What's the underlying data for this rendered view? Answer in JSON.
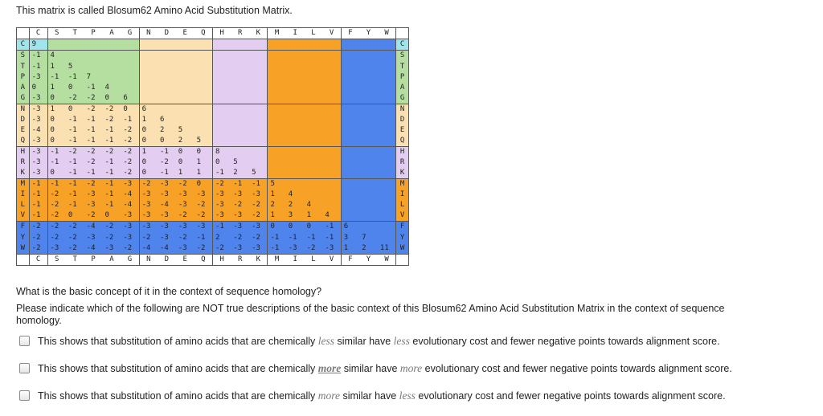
{
  "intro": "This matrix is called Blosum62 Amino Acid Substitution Matrix.",
  "matrix": {
    "columns": [
      "C",
      "S",
      "T",
      "P",
      "A",
      "G",
      "N",
      "D",
      "E",
      "Q",
      "H",
      "R",
      "K",
      "M",
      "I",
      "L",
      "V",
      "F",
      "Y",
      "W"
    ],
    "groups": [
      {
        "name": "C",
        "rows": [
          0
        ],
        "cols": [
          0
        ],
        "color": "#9fe6ec"
      },
      {
        "name": "STPAG",
        "rows": [
          1,
          2,
          3,
          4,
          5
        ],
        "cols": [
          1,
          2,
          3,
          4,
          5
        ],
        "color": "#b4dfa0"
      },
      {
        "name": "NDEQ",
        "rows": [
          6,
          7,
          8,
          9
        ],
        "cols": [
          6,
          7,
          8,
          9
        ],
        "color": "#fbe1b2"
      },
      {
        "name": "HRK",
        "rows": [
          10,
          11,
          12
        ],
        "cols": [
          10,
          11,
          12
        ],
        "color": "#e3cdf0"
      },
      {
        "name": "MILV",
        "rows": [
          13,
          14,
          15,
          16
        ],
        "cols": [
          13,
          14,
          15,
          16
        ],
        "color": "#f7a226"
      },
      {
        "name": "FYW",
        "rows": [
          17,
          18,
          19
        ],
        "cols": [
          17,
          18,
          19
        ],
        "color": "#4f84ec"
      }
    ],
    "rows": [
      {
        "label": "C",
        "values": [
          "9"
        ]
      },
      {
        "label": "S",
        "values": [
          "-1",
          "4"
        ]
      },
      {
        "label": "T",
        "values": [
          "-1",
          "1",
          "5"
        ]
      },
      {
        "label": "P",
        "values": [
          "-3",
          "-1",
          "-1",
          "7"
        ]
      },
      {
        "label": "A",
        "values": [
          "0",
          "1",
          "0",
          "-1",
          "4"
        ]
      },
      {
        "label": "G",
        "values": [
          "-3",
          "0",
          "-2",
          "-2",
          "0",
          "6"
        ]
      },
      {
        "label": "N",
        "values": [
          "-3",
          "1",
          "0",
          "-2",
          "-2",
          "0",
          "6"
        ]
      },
      {
        "label": "D",
        "values": [
          "-3",
          "0",
          "-1",
          "-1",
          "-2",
          "-1",
          "1",
          "6"
        ]
      },
      {
        "label": "E",
        "values": [
          "-4",
          "0",
          "-1",
          "-1",
          "-1",
          "-2",
          "0",
          "2",
          "5"
        ]
      },
      {
        "label": "Q",
        "values": [
          "-3",
          "0",
          "-1",
          "-1",
          "-1",
          "-2",
          "0",
          "0",
          "2",
          "5"
        ]
      },
      {
        "label": "H",
        "values": [
          "-3",
          "-1",
          "-2",
          "-2",
          "-2",
          "-2",
          "1",
          "-1",
          "0",
          "0",
          "8"
        ]
      },
      {
        "label": "R",
        "values": [
          "-3",
          "-1",
          "-1",
          "-2",
          "-1",
          "-2",
          "0",
          "-2",
          "0",
          "1",
          "0",
          "5"
        ]
      },
      {
        "label": "K",
        "values": [
          "-3",
          "0",
          "-1",
          "-1",
          "-1",
          "-2",
          "0",
          "-1",
          "1",
          "1",
          "-1",
          "2",
          "5"
        ]
      },
      {
        "label": "M",
        "values": [
          "-1",
          "-1",
          "-1",
          "-2",
          "-1",
          "-3",
          "-2",
          "-3",
          "-2",
          "0",
          "-2",
          "-1",
          "-1",
          "5"
        ]
      },
      {
        "label": "I",
        "values": [
          "-1",
          "-2",
          "-1",
          "-3",
          "-1",
          "-4",
          "-3",
          "-3",
          "-3",
          "-3",
          "-3",
          "-3",
          "-3",
          "1",
          "4"
        ]
      },
      {
        "label": "L",
        "values": [
          "-1",
          "-2",
          "-1",
          "-3",
          "-1",
          "-4",
          "-3",
          "-4",
          "-3",
          "-2",
          "-3",
          "-2",
          "-2",
          "2",
          "2",
          "4"
        ]
      },
      {
        "label": "V",
        "values": [
          "-1",
          "-2",
          "0",
          "-2",
          "0",
          "-3",
          "-3",
          "-3",
          "-2",
          "-2",
          "-3",
          "-3",
          "-2",
          "1",
          "3",
          "1",
          "4"
        ]
      },
      {
        "label": "F",
        "values": [
          "-2",
          "-2",
          "-2",
          "-4",
          "-2",
          "-3",
          "-3",
          "-3",
          "-3",
          "-3",
          "-1",
          "-3",
          "-3",
          "0",
          "0",
          "0",
          "-1",
          "6"
        ]
      },
      {
        "label": "Y",
        "values": [
          "-2",
          "-2",
          "-2",
          "-3",
          "-2",
          "-3",
          "-2",
          "-3",
          "-2",
          "-1",
          "2",
          "-2",
          "-2",
          "-1",
          "-1",
          "-1",
          "-1",
          "3",
          "7"
        ]
      },
      {
        "label": "W",
        "values": [
          "-2",
          "-3",
          "-2",
          "-4",
          "-3",
          "-2",
          "-4",
          "-4",
          "-3",
          "-2",
          "-2",
          "-3",
          "-3",
          "-1",
          "-3",
          "-2",
          "-3",
          "1",
          "2",
          "11"
        ]
      }
    ]
  },
  "question1": "What is the basic concept of it in the context of sequence homology?",
  "question2": "Please indicate which of the following are NOT true descriptions of the basic context of this Blosum62 Amino Acid Substitution Matrix in the context of sequence homology.",
  "options": [
    {
      "before": "This shows that substitution of amino acids that are chemically ",
      "w1": "less",
      "mid": " similar have ",
      "w2": "less",
      "after": " evolutionary cost and fewer negative points towards alignment score.",
      "underline": false
    },
    {
      "before": "This shows that substitution of amino acids that are chemically ",
      "w1": "more",
      "mid": " similar have ",
      "w2": "more",
      "after": " evolutionary cost and fewer negative points towards alignment score.",
      "underline": true
    },
    {
      "before": "This shows that substitution of amino acids that are chemically ",
      "w1": "more",
      "mid": " similar have ",
      "w2": "less",
      "after": " evolutionary cost and fewer negative points towards alignment score.",
      "underline": false
    }
  ]
}
